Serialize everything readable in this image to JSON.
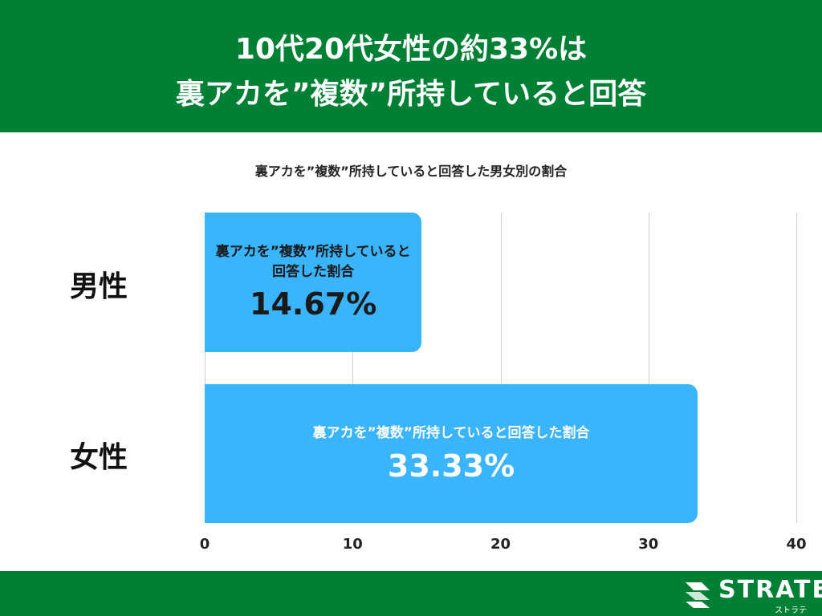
{
  "chart_data": {
    "type": "bar",
    "orientation": "horizontal",
    "title": [
      "10代20代女性の約33%は",
      "裏アカを”複数”所持していると回答"
    ],
    "subtitle": "裏アカを”複数”所持していると回答した男女別の割合",
    "categories": [
      "男性",
      "女性"
    ],
    "values": [
      14.67,
      33.33
    ],
    "value_labels": [
      "14.67%",
      "33.33%"
    ],
    "bar_label": "裏アカを”複数”所持していると回答した割合",
    "color": "#3ab4fc",
    "xlim": [
      0,
      40
    ],
    "xticks": [
      0,
      10,
      20,
      30,
      40
    ],
    "grid": true
  },
  "footer": {
    "logo": "STRATE",
    "logo_sub": "ストラテ"
  }
}
